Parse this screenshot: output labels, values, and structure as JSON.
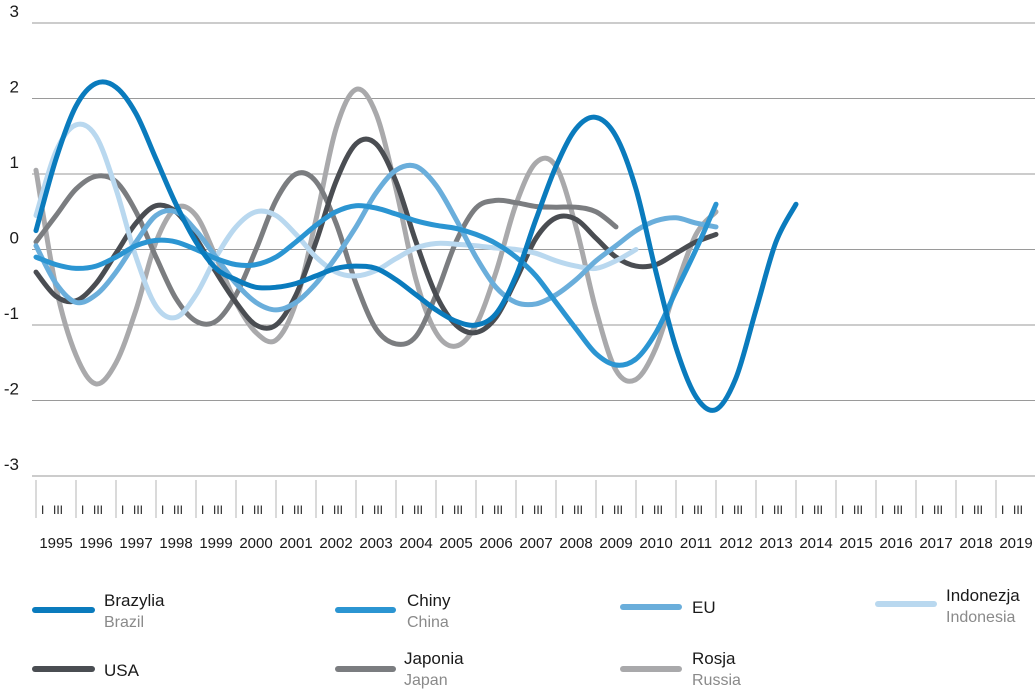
{
  "chart_data": {
    "type": "line",
    "ylim": [
      -3,
      3
    ],
    "yticks": [
      "3",
      "2",
      "1",
      "0",
      "-1",
      "-2",
      "-3"
    ],
    "quarter_marks": [
      "I",
      "III"
    ],
    "x_years": [
      "1995",
      "1996",
      "1997",
      "1998",
      "1999",
      "2000",
      "2001",
      "2002",
      "2003",
      "2004",
      "2005",
      "2006",
      "2007",
      "2008",
      "2009",
      "2010",
      "2011",
      "2012",
      "2013",
      "2014",
      "2015",
      "2016",
      "2017",
      "2018",
      "2019"
    ],
    "grid": "horizontal",
    "legend_position": "bottom",
    "series": [
      {
        "name": "Brazylia",
        "name_en": "Brazil",
        "color": "#0a7bbd",
        "points": [
          [
            1995.0,
            0.25
          ],
          [
            1995.5,
            1.2
          ],
          [
            1996.0,
            1.9
          ],
          [
            1996.5,
            2.2
          ],
          [
            1997.0,
            2.15
          ],
          [
            1997.5,
            1.8
          ],
          [
            1998.0,
            1.2
          ],
          [
            1998.5,
            0.6
          ],
          [
            1999.0,
            0.1
          ],
          [
            1999.5,
            -0.25
          ],
          [
            2000.0,
            -0.4
          ],
          [
            2000.5,
            -0.5
          ],
          [
            2001.0,
            -0.5
          ],
          [
            2001.5,
            -0.45
          ],
          [
            2002.0,
            -0.35
          ],
          [
            2002.5,
            -0.25
          ],
          [
            2003.0,
            -0.22
          ],
          [
            2003.5,
            -0.25
          ],
          [
            2004.0,
            -0.4
          ],
          [
            2004.5,
            -0.6
          ],
          [
            2005.0,
            -0.8
          ],
          [
            2005.5,
            -0.95
          ],
          [
            2006.0,
            -1.0
          ],
          [
            2006.5,
            -0.85
          ],
          [
            2007.0,
            -0.35
          ],
          [
            2007.5,
            0.4
          ],
          [
            2008.0,
            1.1
          ],
          [
            2008.5,
            1.6
          ],
          [
            2009.0,
            1.75
          ],
          [
            2009.5,
            1.5
          ],
          [
            2010.0,
            0.8
          ],
          [
            2010.5,
            -0.3
          ],
          [
            2011.0,
            -1.3
          ],
          [
            2011.5,
            -1.95
          ],
          [
            2012.0,
            -2.12
          ],
          [
            2012.5,
            -1.7
          ],
          [
            2013.0,
            -0.8
          ],
          [
            2013.5,
            0.1
          ],
          [
            2014.0,
            0.6
          ]
        ]
      },
      {
        "name": "Chiny",
        "name_en": "China",
        "color": "#2b95d2",
        "points": [
          [
            1995.0,
            -0.1
          ],
          [
            1995.5,
            -0.2
          ],
          [
            1996.0,
            -0.25
          ],
          [
            1996.5,
            -0.22
          ],
          [
            1997.0,
            -0.1
          ],
          [
            1997.5,
            0.05
          ],
          [
            1998.0,
            0.12
          ],
          [
            1998.5,
            0.1
          ],
          [
            1999.0,
            0.0
          ],
          [
            1999.5,
            -0.12
          ],
          [
            2000.0,
            -0.2
          ],
          [
            2000.5,
            -0.2
          ],
          [
            2001.0,
            -0.1
          ],
          [
            2001.5,
            0.1
          ],
          [
            2002.0,
            0.32
          ],
          [
            2002.5,
            0.5
          ],
          [
            2003.0,
            0.58
          ],
          [
            2003.5,
            0.55
          ],
          [
            2004.0,
            0.47
          ],
          [
            2004.5,
            0.38
          ],
          [
            2005.0,
            0.32
          ],
          [
            2005.5,
            0.28
          ],
          [
            2006.0,
            0.2
          ],
          [
            2006.5,
            0.08
          ],
          [
            2007.0,
            -0.1
          ],
          [
            2007.5,
            -0.35
          ],
          [
            2008.0,
            -0.7
          ],
          [
            2008.5,
            -1.05
          ],
          [
            2009.0,
            -1.38
          ],
          [
            2009.5,
            -1.53
          ],
          [
            2010.0,
            -1.45
          ],
          [
            2010.5,
            -1.1
          ],
          [
            2011.0,
            -0.55
          ],
          [
            2011.5,
            0.0
          ],
          [
            2012.0,
            0.6
          ]
        ]
      },
      {
        "name": "EU",
        "name_en": "",
        "color": "#6aaedb",
        "points": [
          [
            1995.0,
            0.05
          ],
          [
            1995.5,
            -0.45
          ],
          [
            1996.0,
            -0.7
          ],
          [
            1996.5,
            -0.6
          ],
          [
            1997.0,
            -0.3
          ],
          [
            1997.5,
            0.1
          ],
          [
            1998.0,
            0.45
          ],
          [
            1998.5,
            0.5
          ],
          [
            1999.0,
            0.25
          ],
          [
            1999.5,
            -0.1
          ],
          [
            2000.0,
            -0.45
          ],
          [
            2000.5,
            -0.7
          ],
          [
            2001.0,
            -0.8
          ],
          [
            2001.5,
            -0.7
          ],
          [
            2002.0,
            -0.45
          ],
          [
            2002.5,
            -0.1
          ],
          [
            2003.0,
            0.3
          ],
          [
            2003.5,
            0.75
          ],
          [
            2004.0,
            1.05
          ],
          [
            2004.5,
            1.1
          ],
          [
            2005.0,
            0.85
          ],
          [
            2005.5,
            0.4
          ],
          [
            2006.0,
            -0.1
          ],
          [
            2006.5,
            -0.5
          ],
          [
            2007.0,
            -0.7
          ],
          [
            2007.5,
            -0.72
          ],
          [
            2008.0,
            -0.6
          ],
          [
            2008.5,
            -0.4
          ],
          [
            2009.0,
            -0.15
          ],
          [
            2009.5,
            0.05
          ],
          [
            2010.0,
            0.25
          ],
          [
            2010.5,
            0.38
          ],
          [
            2011.0,
            0.42
          ],
          [
            2011.5,
            0.35
          ],
          [
            2012.0,
            0.3
          ]
        ]
      },
      {
        "name": "Indonezja",
        "name_en": "Indonesia",
        "color": "#b9d8ef",
        "points": [
          [
            1995.0,
            0.45
          ],
          [
            1995.5,
            1.3
          ],
          [
            1996.0,
            1.65
          ],
          [
            1996.5,
            1.5
          ],
          [
            1997.0,
            0.8
          ],
          [
            1997.5,
            -0.1
          ],
          [
            1998.0,
            -0.75
          ],
          [
            1998.5,
            -0.9
          ],
          [
            1999.0,
            -0.6
          ],
          [
            1999.5,
            -0.1
          ],
          [
            2000.0,
            0.3
          ],
          [
            2000.5,
            0.5
          ],
          [
            2001.0,
            0.45
          ],
          [
            2001.5,
            0.2
          ],
          [
            2002.0,
            -0.1
          ],
          [
            2002.5,
            -0.3
          ],
          [
            2003.0,
            -0.35
          ],
          [
            2003.5,
            -0.28
          ],
          [
            2004.0,
            -0.12
          ],
          [
            2004.5,
            0.02
          ],
          [
            2005.0,
            0.08
          ],
          [
            2005.5,
            0.07
          ],
          [
            2006.0,
            0.05
          ],
          [
            2006.5,
            0.02
          ],
          [
            2007.0,
            0.0
          ],
          [
            2007.5,
            -0.05
          ],
          [
            2008.0,
            -0.15
          ],
          [
            2008.5,
            -0.22
          ],
          [
            2009.0,
            -0.25
          ],
          [
            2009.5,
            -0.15
          ],
          [
            2010.0,
            0.0
          ]
        ]
      },
      {
        "name": "USA",
        "name_en": "",
        "color": "#4a4d52",
        "points": [
          [
            1995.0,
            -0.3
          ],
          [
            1995.5,
            -0.62
          ],
          [
            1996.0,
            -0.68
          ],
          [
            1996.5,
            -0.45
          ],
          [
            1997.0,
            -0.05
          ],
          [
            1997.5,
            0.35
          ],
          [
            1998.0,
            0.58
          ],
          [
            1998.5,
            0.5
          ],
          [
            1999.0,
            0.15
          ],
          [
            1999.5,
            -0.3
          ],
          [
            2000.0,
            -0.7
          ],
          [
            2000.5,
            -1.0
          ],
          [
            2001.0,
            -1.0
          ],
          [
            2001.5,
            -0.6
          ],
          [
            2002.0,
            0.1
          ],
          [
            2002.5,
            0.9
          ],
          [
            2003.0,
            1.4
          ],
          [
            2003.5,
            1.4
          ],
          [
            2004.0,
            0.9
          ],
          [
            2004.5,
            0.1
          ],
          [
            2005.0,
            -0.6
          ],
          [
            2005.5,
            -1.0
          ],
          [
            2006.0,
            -1.1
          ],
          [
            2006.5,
            -0.9
          ],
          [
            2007.0,
            -0.4
          ],
          [
            2007.5,
            0.15
          ],
          [
            2008.0,
            0.42
          ],
          [
            2008.5,
            0.4
          ],
          [
            2009.0,
            0.15
          ],
          [
            2009.5,
            -0.1
          ],
          [
            2010.0,
            -0.22
          ],
          [
            2010.5,
            -0.2
          ],
          [
            2011.0,
            -0.05
          ],
          [
            2011.5,
            0.1
          ],
          [
            2012.0,
            0.2
          ]
        ]
      },
      {
        "name": "Japonia",
        "name_en": "Japan",
        "color": "#7b7d80",
        "points": [
          [
            1995.0,
            0.1
          ],
          [
            1995.5,
            0.45
          ],
          [
            1996.0,
            0.8
          ],
          [
            1996.5,
            0.97
          ],
          [
            1997.0,
            0.9
          ],
          [
            1997.5,
            0.5
          ],
          [
            1998.0,
            -0.1
          ],
          [
            1998.5,
            -0.65
          ],
          [
            1999.0,
            -0.95
          ],
          [
            1999.5,
            -0.95
          ],
          [
            2000.0,
            -0.6
          ],
          [
            2000.5,
            0.0
          ],
          [
            2001.0,
            0.65
          ],
          [
            2001.5,
            1.0
          ],
          [
            2002.0,
            0.9
          ],
          [
            2002.5,
            0.35
          ],
          [
            2003.0,
            -0.45
          ],
          [
            2003.5,
            -1.05
          ],
          [
            2004.0,
            -1.25
          ],
          [
            2004.5,
            -1.15
          ],
          [
            2005.0,
            -0.6
          ],
          [
            2005.5,
            0.1
          ],
          [
            2006.0,
            0.55
          ],
          [
            2006.5,
            0.65
          ],
          [
            2007.0,
            0.62
          ],
          [
            2007.5,
            0.57
          ],
          [
            2008.0,
            0.56
          ],
          [
            2008.5,
            0.56
          ],
          [
            2009.0,
            0.5
          ],
          [
            2009.5,
            0.3
          ]
        ]
      },
      {
        "name": "Rosja",
        "name_en": "Russia",
        "color": "#a9a9ab",
        "points": [
          [
            1995.0,
            1.05
          ],
          [
            1995.5,
            -0.5
          ],
          [
            1996.0,
            -1.4
          ],
          [
            1996.5,
            -1.78
          ],
          [
            1997.0,
            -1.5
          ],
          [
            1997.5,
            -0.8
          ],
          [
            1998.0,
            0.1
          ],
          [
            1998.5,
            0.55
          ],
          [
            1999.0,
            0.45
          ],
          [
            1999.5,
            -0.1
          ],
          [
            2000.0,
            -0.7
          ],
          [
            2000.5,
            -1.1
          ],
          [
            2001.0,
            -1.2
          ],
          [
            2001.5,
            -0.7
          ],
          [
            2002.0,
            0.4
          ],
          [
            2002.5,
            1.6
          ],
          [
            2003.0,
            2.12
          ],
          [
            2003.5,
            1.8
          ],
          [
            2004.0,
            0.8
          ],
          [
            2004.5,
            -0.4
          ],
          [
            2005.0,
            -1.1
          ],
          [
            2005.5,
            -1.28
          ],
          [
            2006.0,
            -1.0
          ],
          [
            2006.5,
            -0.3
          ],
          [
            2007.0,
            0.6
          ],
          [
            2007.5,
            1.15
          ],
          [
            2008.0,
            1.1
          ],
          [
            2008.5,
            0.3
          ],
          [
            2009.0,
            -0.8
          ],
          [
            2009.5,
            -1.6
          ],
          [
            2010.0,
            -1.72
          ],
          [
            2010.5,
            -1.3
          ],
          [
            2011.0,
            -0.5
          ],
          [
            2011.5,
            0.2
          ],
          [
            2012.0,
            0.5
          ]
        ]
      }
    ]
  },
  "legend": {
    "brazil": {
      "main": "Brazylia",
      "sub": "Brazil"
    },
    "china": {
      "main": "Chiny",
      "sub": "China"
    },
    "eu": {
      "main": "EU",
      "sub": ""
    },
    "indonesia": {
      "main": "Indonezja",
      "sub": "Indonesia"
    },
    "usa": {
      "main": "USA",
      "sub": ""
    },
    "japan": {
      "main": "Japonia",
      "sub": "Japan"
    },
    "russia": {
      "main": "Rosja",
      "sub": "Russia"
    }
  }
}
